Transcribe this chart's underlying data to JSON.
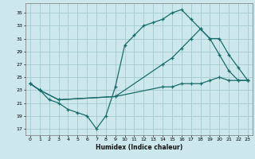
{
  "xlabel": "Humidex (Indice chaleur)",
  "bg_color": "#cce8ec",
  "grid_color": "#aacdd4",
  "line_color": "#1a6b6b",
  "xlim": [
    -0.5,
    23.5
  ],
  "ylim": [
    16,
    36.5
  ],
  "yticks": [
    17,
    19,
    21,
    23,
    25,
    27,
    29,
    31,
    33,
    35
  ],
  "xticks": [
    0,
    1,
    2,
    3,
    4,
    5,
    6,
    7,
    8,
    9,
    10,
    11,
    12,
    13,
    14,
    15,
    16,
    17,
    18,
    19,
    20,
    21,
    22,
    23
  ],
  "line1_x": [
    0,
    1,
    2,
    3,
    4,
    5,
    6,
    7,
    8,
    9,
    10,
    11,
    12,
    13,
    14,
    15,
    16,
    17,
    18,
    19,
    20,
    21,
    22,
    23
  ],
  "line1_y": [
    24,
    23,
    21.5,
    21,
    20,
    19.5,
    19,
    17,
    19,
    23.5,
    30,
    31.5,
    33,
    33.5,
    34,
    35,
    35.5,
    34,
    32.5,
    31,
    28.5,
    26,
    24.5,
    24.5
  ],
  "line2_x": [
    0,
    1,
    3,
    9,
    14,
    15,
    16,
    17,
    18,
    19,
    20,
    21,
    22,
    23
  ],
  "line2_y": [
    24,
    23,
    21.5,
    22,
    27,
    28,
    29.5,
    31,
    32.5,
    31,
    31,
    28.5,
    26.5,
    24.5
  ],
  "line3_x": [
    0,
    1,
    3,
    9,
    14,
    15,
    16,
    17,
    18,
    19,
    20,
    21,
    22,
    23
  ],
  "line3_y": [
    24,
    23,
    21.5,
    22,
    23.5,
    23.5,
    24,
    24,
    24,
    24.5,
    25,
    24.5,
    24.5,
    24.5
  ]
}
